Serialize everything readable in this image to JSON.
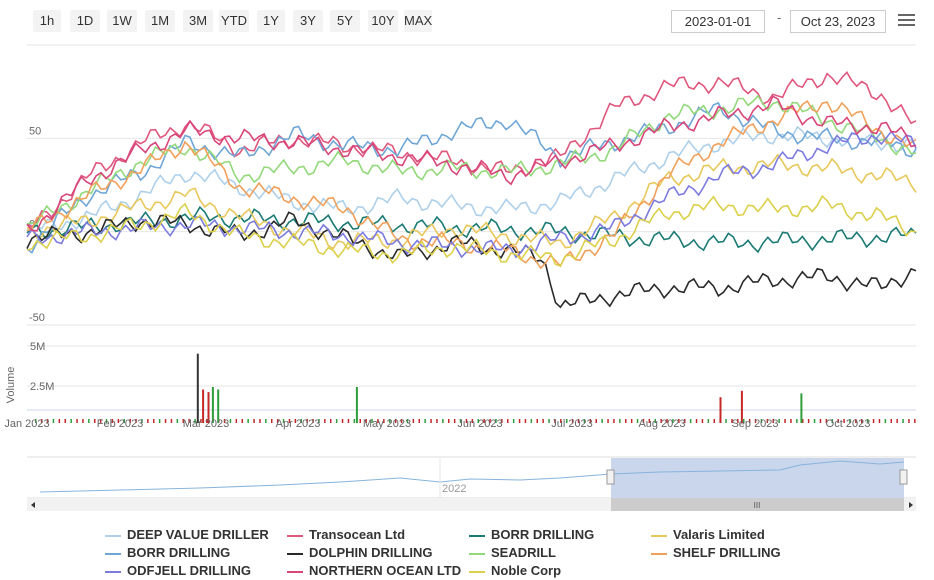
{
  "range_buttons": [
    "1h",
    "1D",
    "1W",
    "1M",
    "3M",
    "YTD",
    "1Y",
    "3Y",
    "5Y",
    "10Y",
    "MAX"
  ],
  "date_from": "2023-01-01",
  "date_separator": "-",
  "date_to": "Oct 23, 2023",
  "menu_icon": "hamburger-menu-icon",
  "navigator_label": "2022",
  "scroll_grip": "III",
  "chart_data": {
    "type": "line",
    "y_ticks": [
      "50",
      "0",
      "-50"
    ],
    "ylim": [
      -50,
      100
    ],
    "x_ticks": [
      "Jan 2023",
      "Feb 2023",
      "Mar 2023",
      "Apr 2023",
      "May 2023",
      "Jun 2023",
      "Jul 2023",
      "Aug 2023",
      "Sep 2023",
      "Oct 2023"
    ],
    "volume_ylabel": "Volume",
    "volume_ticks": [
      "5M",
      "2.5M"
    ],
    "volume_ylim": [
      0,
      5000000
    ],
    "series": [
      {
        "name": "DEEP VALUE DRILLER",
        "color": "#aed0ea",
        "points": [
          [
            0,
            0
          ],
          [
            0.07,
            8
          ],
          [
            0.13,
            20
          ],
          [
            0.18,
            32
          ],
          [
            0.24,
            24
          ],
          [
            0.3,
            16
          ],
          [
            0.36,
            12
          ],
          [
            0.42,
            18
          ],
          [
            0.48,
            14
          ],
          [
            0.54,
            12
          ],
          [
            0.6,
            16
          ],
          [
            0.66,
            28
          ],
          [
            0.72,
            40
          ],
          [
            0.78,
            48
          ],
          [
            0.84,
            52
          ],
          [
            0.9,
            50
          ],
          [
            0.96,
            48
          ],
          [
            1,
            46
          ]
        ]
      },
      {
        "name": "Transocean Ltd",
        "color": "#e0577e",
        "points": [
          [
            0,
            0
          ],
          [
            0.07,
            30
          ],
          [
            0.13,
            48
          ],
          [
            0.18,
            58
          ],
          [
            0.24,
            44
          ],
          [
            0.3,
            50
          ],
          [
            0.36,
            46
          ],
          [
            0.42,
            42
          ],
          [
            0.48,
            38
          ],
          [
            0.54,
            32
          ],
          [
            0.6,
            40
          ],
          [
            0.66,
            66
          ],
          [
            0.72,
            78
          ],
          [
            0.78,
            80
          ],
          [
            0.84,
            72
          ],
          [
            0.9,
            84
          ],
          [
            0.96,
            74
          ],
          [
            1,
            56
          ]
        ]
      },
      {
        "name": "BORR DRILLING",
        "color": "#1a7a74",
        "points": [
          [
            0,
            0
          ],
          [
            0.1,
            4
          ],
          [
            0.2,
            8
          ],
          [
            0.3,
            6
          ],
          [
            0.4,
            4
          ],
          [
            0.5,
            2
          ],
          [
            0.6,
            0
          ],
          [
            0.7,
            -4
          ],
          [
            0.8,
            -6
          ],
          [
            0.9,
            -4
          ],
          [
            1,
            -2
          ]
        ]
      },
      {
        "name": "Valaris Limited",
        "color": "#e8c85a",
        "points": [
          [
            0,
            0
          ],
          [
            0.07,
            6
          ],
          [
            0.13,
            14
          ],
          [
            0.18,
            20
          ],
          [
            0.24,
            8
          ],
          [
            0.3,
            0
          ],
          [
            0.36,
            -6
          ],
          [
            0.42,
            -4
          ],
          [
            0.48,
            2
          ],
          [
            0.54,
            -2
          ],
          [
            0.6,
            -6
          ],
          [
            0.66,
            8
          ],
          [
            0.72,
            28
          ],
          [
            0.78,
            34
          ],
          [
            0.84,
            36
          ],
          [
            0.9,
            34
          ],
          [
            0.96,
            30
          ],
          [
            1,
            26
          ]
        ]
      },
      {
        "name": "BORR DRILLING",
        "color": "#6fa6d6",
        "points": [
          [
            0,
            -8
          ],
          [
            0.07,
            20
          ],
          [
            0.13,
            32
          ],
          [
            0.18,
            48
          ],
          [
            0.24,
            40
          ],
          [
            0.3,
            52
          ],
          [
            0.36,
            46
          ],
          [
            0.42,
            44
          ],
          [
            0.48,
            54
          ],
          [
            0.54,
            60
          ],
          [
            0.6,
            40
          ],
          [
            0.66,
            48
          ],
          [
            0.72,
            56
          ],
          [
            0.78,
            66
          ],
          [
            0.84,
            54
          ],
          [
            0.9,
            50
          ],
          [
            0.96,
            48
          ],
          [
            1,
            44
          ]
        ]
      },
      {
        "name": "DOLPHIN DRILLING",
        "color": "#2a2a2a",
        "points": [
          [
            0,
            -4
          ],
          [
            0.07,
            0
          ],
          [
            0.13,
            6
          ],
          [
            0.18,
            4
          ],
          [
            0.24,
            -2
          ],
          [
            0.3,
            6
          ],
          [
            0.36,
            -4
          ],
          [
            0.42,
            -14
          ],
          [
            0.48,
            -6
          ],
          [
            0.54,
            -10
          ],
          [
            0.58,
            -14
          ],
          [
            0.6,
            -40
          ],
          [
            0.66,
            -34
          ],
          [
            0.72,
            -30
          ],
          [
            0.78,
            -30
          ],
          [
            0.84,
            -26
          ],
          [
            0.9,
            -24
          ],
          [
            0.96,
            -30
          ],
          [
            1,
            -20
          ]
        ]
      },
      {
        "name": "SEADRILL",
        "color": "#92d97a",
        "points": [
          [
            0,
            2
          ],
          [
            0.07,
            22
          ],
          [
            0.13,
            38
          ],
          [
            0.18,
            46
          ],
          [
            0.24,
            30
          ],
          [
            0.3,
            34
          ],
          [
            0.36,
            38
          ],
          [
            0.42,
            32
          ],
          [
            0.48,
            34
          ],
          [
            0.54,
            32
          ],
          [
            0.6,
            36
          ],
          [
            0.66,
            44
          ],
          [
            0.72,
            62
          ],
          [
            0.78,
            66
          ],
          [
            0.84,
            70
          ],
          [
            0.9,
            60
          ],
          [
            0.96,
            50
          ],
          [
            1,
            42
          ]
        ]
      },
      {
        "name": "SHELF DRILLING",
        "color": "#f0a05a",
        "points": [
          [
            0,
            0
          ],
          [
            0.07,
            20
          ],
          [
            0.13,
            34
          ],
          [
            0.18,
            48
          ],
          [
            0.24,
            24
          ],
          [
            0.3,
            18
          ],
          [
            0.36,
            12
          ],
          [
            0.42,
            -4
          ],
          [
            0.48,
            -6
          ],
          [
            0.54,
            -10
          ],
          [
            0.6,
            -18
          ],
          [
            0.66,
            -2
          ],
          [
            0.72,
            30
          ],
          [
            0.78,
            48
          ],
          [
            0.84,
            60
          ],
          [
            0.9,
            70
          ],
          [
            0.96,
            54
          ],
          [
            1,
            44
          ]
        ]
      },
      {
        "name": "ODFJELL DRILLING",
        "color": "#7b7be0",
        "points": [
          [
            0,
            -4
          ],
          [
            0.07,
            0
          ],
          [
            0.13,
            2
          ],
          [
            0.18,
            4
          ],
          [
            0.24,
            2
          ],
          [
            0.3,
            0
          ],
          [
            0.36,
            -2
          ],
          [
            0.42,
            -6
          ],
          [
            0.48,
            -8
          ],
          [
            0.54,
            -10
          ],
          [
            0.6,
            -4
          ],
          [
            0.66,
            2
          ],
          [
            0.72,
            18
          ],
          [
            0.78,
            30
          ],
          [
            0.84,
            36
          ],
          [
            0.9,
            46
          ],
          [
            0.96,
            52
          ],
          [
            1,
            46
          ]
        ]
      },
      {
        "name": "NORTHERN OCEAN LTD",
        "color": "#d9467a",
        "points": [
          [
            0,
            0
          ],
          [
            0.07,
            28
          ],
          [
            0.13,
            44
          ],
          [
            0.18,
            54
          ],
          [
            0.24,
            50
          ],
          [
            0.3,
            48
          ],
          [
            0.36,
            44
          ],
          [
            0.42,
            40
          ],
          [
            0.48,
            36
          ],
          [
            0.54,
            30
          ],
          [
            0.6,
            38
          ],
          [
            0.66,
            46
          ],
          [
            0.72,
            56
          ],
          [
            0.78,
            62
          ],
          [
            0.84,
            68
          ],
          [
            0.9,
            58
          ],
          [
            0.96,
            56
          ],
          [
            1,
            48
          ]
        ]
      },
      {
        "name": "Noble Corp",
        "color": "#dcd04a",
        "points": [
          [
            0,
            -6
          ],
          [
            0.07,
            -2
          ],
          [
            0.13,
            4
          ],
          [
            0.18,
            10
          ],
          [
            0.24,
            -2
          ],
          [
            0.3,
            -6
          ],
          [
            0.36,
            -10
          ],
          [
            0.42,
            -12
          ],
          [
            0.48,
            -8
          ],
          [
            0.54,
            -12
          ],
          [
            0.6,
            -14
          ],
          [
            0.66,
            -4
          ],
          [
            0.72,
            10
          ],
          [
            0.78,
            14
          ],
          [
            0.84,
            12
          ],
          [
            0.9,
            14
          ],
          [
            0.96,
            8
          ],
          [
            1,
            0
          ]
        ]
      }
    ],
    "volume_spikes": [
      {
        "x": 0.191,
        "v": 4400000,
        "color": "#333333"
      },
      {
        "x": 0.197,
        "v": 1600000,
        "color": "#c62828"
      },
      {
        "x": 0.203,
        "v": 1400000,
        "color": "#c62828"
      },
      {
        "x": 0.208,
        "v": 1800000,
        "color": "#2e9d3a"
      },
      {
        "x": 0.214,
        "v": 1600000,
        "color": "#2e9d3a"
      },
      {
        "x": 0.37,
        "v": 1800000,
        "color": "#2e9d3a"
      },
      {
        "x": 0.779,
        "v": 1000000,
        "color": "#c62828"
      },
      {
        "x": 0.803,
        "v": 1500000,
        "color": "#c62828"
      },
      {
        "x": 0.87,
        "v": 1300000,
        "color": "#2e9d3a"
      }
    ]
  }
}
